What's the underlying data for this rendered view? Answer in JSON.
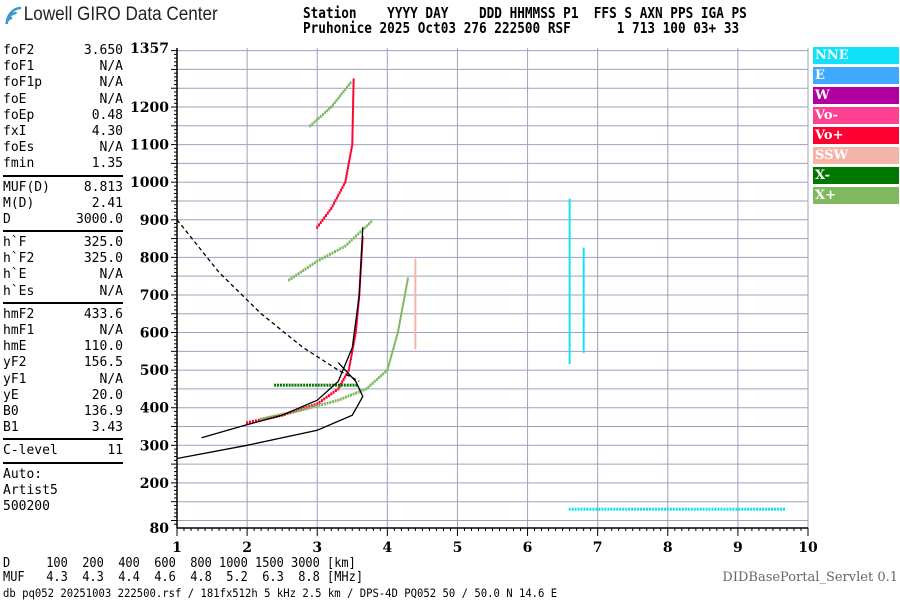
{
  "header": {
    "logo_text": "Lowell GIRO Data Center",
    "line1": "Station    YYYY DAY    DDD HHMMSS P1  FFS S AXN PPS IGA PS",
    "line2": "Pruhonice 2025 Oct03 276 222500 RSF      1 713 100 03+ 33"
  },
  "params": {
    "group1": [
      [
        "foF2",
        "3.650"
      ],
      [
        "foF1",
        "N/A"
      ],
      [
        "foF1p",
        "N/A"
      ],
      [
        "foE",
        "N/A"
      ],
      [
        "foEp",
        "0.48"
      ],
      [
        "fxI",
        "4.30"
      ],
      [
        "foEs",
        "N/A"
      ],
      [
        "fmin",
        "1.35"
      ]
    ],
    "group2": [
      [
        "MUF(D)",
        "8.813"
      ],
      [
        "M(D)",
        "2.41"
      ],
      [
        "D",
        "3000.0"
      ]
    ],
    "group3": [
      [
        "h`F",
        "325.0"
      ],
      [
        "h`F2",
        "325.0"
      ],
      [
        "h`E",
        "N/A"
      ],
      [
        "h`Es",
        "N/A"
      ]
    ],
    "group4": [
      [
        "hmF2",
        "433.6"
      ],
      [
        "hmF1",
        "N/A"
      ],
      [
        "hmE",
        "110.0"
      ],
      [
        "yF2",
        "156.5"
      ],
      [
        "yF1",
        "N/A"
      ],
      [
        "yE",
        "20.0"
      ],
      [
        "B0",
        "136.9"
      ],
      [
        "B1",
        "3.43"
      ]
    ],
    "group5": [
      [
        "C-level",
        "11"
      ]
    ],
    "auto": [
      "Auto:",
      "Artist5",
      "500200"
    ]
  },
  "legend": [
    {
      "label": "NNE",
      "color": "#10e0f8"
    },
    {
      "label": "E",
      "color": "#40a8ff"
    },
    {
      "label": "W",
      "color": "#b000a0"
    },
    {
      "label": "Vo-",
      "color": "#ff4090"
    },
    {
      "label": "Vo+",
      "color": "#ff0030"
    },
    {
      "label": "SSW",
      "color": "#f4b4a8"
    },
    {
      "label": "X-",
      "color": "#007800"
    },
    {
      "label": "X+",
      "color": "#80b860"
    }
  ],
  "bottom": {
    "d_line": "D     100  200  400  600  800 1000 1500 3000 [km]",
    "muf_line": "MUF   4.3  4.3  4.4  4.6  4.8  5.2  6.3  8.8 [MHz]",
    "footer": "db pq052 20251003 222500.rsf / 181fx512h 5 kHz 2.5 km / DPS-4D PQ052 50 / 50.0 N 14.6 E",
    "servlet": "DIDBasePortal_Servlet 0.1"
  },
  "chart_data": {
    "type": "scatter",
    "xlabel": "",
    "ylabel": "",
    "xlim": [
      1,
      10
    ],
    "ylim": [
      80,
      1357
    ],
    "x_ticks": [
      "1",
      "2",
      "3",
      "4",
      "5",
      "6",
      "7",
      "8",
      "9",
      "10"
    ],
    "y_ticks": [
      "1357",
      "1200",
      "1100",
      "1000",
      "900",
      "800",
      "700",
      "600",
      "500",
      "400",
      "300",
      "200",
      "80"
    ],
    "grid": true,
    "legend_placement": "right",
    "traces": [
      {
        "mode": "Vo+",
        "points": [
          [
            2.0,
            360
          ],
          [
            2.5,
            380
          ],
          [
            3.0,
            410
          ],
          [
            3.3,
            450
          ],
          [
            3.45,
            500
          ],
          [
            3.55,
            600
          ],
          [
            3.6,
            700
          ],
          [
            3.65,
            860
          ]
        ]
      },
      {
        "mode": "Vo+",
        "points": [
          [
            3.0,
            880
          ],
          [
            3.2,
            930
          ],
          [
            3.4,
            1000
          ],
          [
            3.5,
            1100
          ],
          [
            3.52,
            1280
          ]
        ]
      },
      {
        "mode": "X+",
        "points": [
          [
            2.2,
            370
          ],
          [
            2.8,
            395
          ],
          [
            3.3,
            420
          ],
          [
            3.7,
            450
          ],
          [
            4.0,
            500
          ],
          [
            4.15,
            600
          ],
          [
            4.3,
            750
          ]
        ]
      },
      {
        "mode": "X+",
        "points": [
          [
            2.6,
            740
          ],
          [
            3.0,
            790
          ],
          [
            3.4,
            830
          ],
          [
            3.8,
            900
          ]
        ]
      },
      {
        "mode": "X+",
        "points": [
          [
            2.9,
            1150
          ],
          [
            3.2,
            1200
          ],
          [
            3.5,
            1270
          ]
        ]
      },
      {
        "mode": "NNE",
        "points": [
          [
            6.6,
            520
          ],
          [
            6.6,
            960
          ]
        ]
      },
      {
        "mode": "NNE",
        "points": [
          [
            6.8,
            550
          ],
          [
            6.8,
            830
          ]
        ]
      },
      {
        "mode": "NNE",
        "points": [
          [
            6.6,
            130
          ],
          [
            9.7,
            130
          ]
        ]
      },
      {
        "mode": "SSW",
        "points": [
          [
            4.4,
            560
          ],
          [
            4.4,
            800
          ]
        ]
      },
      {
        "mode": "X-",
        "points": [
          [
            2.4,
            460
          ],
          [
            3.6,
            460
          ]
        ]
      }
    ],
    "profile_solid": [
      [
        1.35,
        320
      ],
      [
        2.0,
        355
      ],
      [
        2.5,
        380
      ],
      [
        3.0,
        420
      ],
      [
        3.3,
        470
      ],
      [
        3.5,
        560
      ],
      [
        3.6,
        700
      ],
      [
        3.65,
        880
      ]
    ],
    "profile_density": [
      [
        1.0,
        265
      ],
      [
        2.0,
        300
      ],
      [
        3.0,
        340
      ],
      [
        3.5,
        380
      ],
      [
        3.65,
        430
      ],
      [
        3.55,
        470
      ],
      [
        3.3,
        520
      ]
    ],
    "muf_dashed": [
      [
        1.0,
        900
      ],
      [
        1.6,
        760
      ],
      [
        2.2,
        650
      ],
      [
        2.8,
        560
      ],
      [
        3.3,
        500
      ],
      [
        3.6,
        470
      ]
    ]
  }
}
